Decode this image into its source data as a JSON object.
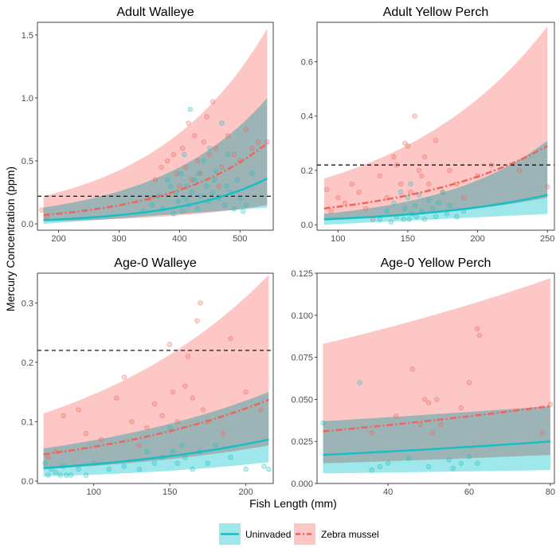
{
  "colors": {
    "uninvaded": "#17bfc4",
    "zebra": "#f0645a",
    "uninvaded_band": "#9ee7ea",
    "zebra_band": "#fcc7c5",
    "overlap_band": "#c7c7c7"
  },
  "axes": {
    "x_title": "Fish Length (mm)",
    "y_title": "Mercury Concentration (ppm)"
  },
  "legend": {
    "uninvaded_label": "Uninvaded",
    "zebra_label": "Zebra mussel"
  },
  "chart_data": [
    {
      "type": "scatter",
      "title": "Adult Walleye",
      "xlim": [
        165,
        555
      ],
      "ylim": [
        -0.05,
        1.6
      ],
      "xticks": [
        200,
        300,
        400,
        500
      ],
      "yticks": [
        0.0,
        0.5,
        1.0,
        1.5
      ],
      "ytick_labels": [
        "0.0",
        "0.5",
        "1.0",
        "1.5"
      ],
      "threshold": 0.22,
      "series": [
        {
          "name": "Uninvaded",
          "x": [
            175,
            545
          ],
          "fit": [
            0.03,
            0.36
          ],
          "lower": [
            0.0,
            0.13
          ],
          "upper": [
            0.13,
            1.0
          ],
          "points_x": [
            340,
            355,
            365,
            372,
            380,
            385,
            390,
            395,
            398,
            402,
            405,
            408,
            410,
            412,
            415,
            418,
            420,
            425,
            430,
            432,
            435,
            440,
            445,
            448,
            450,
            455,
            458,
            460,
            465,
            470,
            475,
            478,
            480,
            485,
            490,
            495,
            500,
            505,
            510,
            520
          ],
          "points_y": [
            0.1,
            0.15,
            0.22,
            0.12,
            0.35,
            0.3,
            0.08,
            0.25,
            0.18,
            0.4,
            0.1,
            0.55,
            0.2,
            0.3,
            0.15,
            0.91,
            0.25,
            0.35,
            0.12,
            0.4,
            0.22,
            0.5,
            0.3,
            0.18,
            0.6,
            0.25,
            0.35,
            0.42,
            0.2,
            0.8,
            0.15,
            0.3,
            0.55,
            0.25,
            0.12,
            0.35,
            0.2,
            0.1,
            0.15,
            0.4
          ]
        },
        {
          "name": "Zebra mussel",
          "x": [
            175,
            545
          ],
          "fit": [
            0.07,
            0.64
          ],
          "lower": [
            0.02,
            0.15
          ],
          "upper": [
            0.22,
            1.55
          ],
          "points_x": [
            172,
            180,
            350,
            360,
            370,
            380,
            390,
            395,
            400,
            405,
            410,
            415,
            420,
            425,
            430,
            435,
            440,
            445,
            450,
            455,
            460,
            465,
            470,
            480,
            490,
            500,
            510,
            520,
            530,
            545
          ],
          "points_y": [
            0.11,
            0.05,
            0.2,
            0.35,
            0.45,
            0.5,
            0.55,
            0.4,
            0.3,
            0.6,
            0.45,
            0.8,
            0.35,
            0.7,
            0.5,
            0.4,
            0.65,
            0.85,
            0.55,
            0.97,
            0.6,
            0.3,
            0.45,
            0.7,
            0.55,
            0.5,
            0.75,
            0.6,
            0.65,
            0.65
          ]
        }
      ]
    },
    {
      "type": "scatter",
      "title": "Adult Yellow Perch",
      "xlim": [
        85,
        255
      ],
      "ylim": [
        -0.02,
        0.745
      ],
      "xticks": [
        100,
        150,
        200,
        250
      ],
      "yticks": [
        0.0,
        0.2,
        0.4,
        0.6
      ],
      "ytick_labels": [
        "0.0",
        "0.2",
        "0.4",
        "0.6"
      ],
      "threshold": 0.22,
      "series": [
        {
          "name": "Uninvaded",
          "x": [
            90,
            250
          ],
          "fit": [
            0.02,
            0.11
          ],
          "lower": [
            0.0,
            0.04
          ],
          "upper": [
            0.04,
            0.31
          ],
          "points_x": [
            130,
            135,
            138,
            140,
            142,
            145,
            147,
            148,
            150,
            151,
            152,
            153,
            155,
            156,
            158,
            160,
            162,
            165,
            168,
            170,
            172,
            175,
            178,
            180,
            185,
            190
          ],
          "points_y": [
            0.02,
            0.05,
            0.01,
            0.08,
            0.03,
            0.12,
            0.02,
            0.06,
            0.1,
            0.02,
            0.15,
            0.04,
            0.07,
            0.03,
            0.11,
            0.05,
            0.02,
            0.09,
            0.06,
            0.03,
            0.08,
            0.12,
            0.04,
            0.07,
            0.03,
            0.05
          ]
        },
        {
          "name": "Zebra mussel",
          "x": [
            90,
            250
          ],
          "fit": [
            0.06,
            0.29
          ],
          "lower": [
            0.02,
            0.1
          ],
          "upper": [
            0.17,
            0.73
          ],
          "points_x": [
            92,
            95,
            100,
            105,
            110,
            115,
            120,
            125,
            130,
            135,
            140,
            142,
            145,
            148,
            150,
            152,
            155,
            158,
            160,
            162,
            165,
            170,
            175,
            180,
            185,
            190,
            200,
            210,
            230,
            250
          ],
          "points_y": [
            0.13,
            0.05,
            0.1,
            0.08,
            0.15,
            0.12,
            0.06,
            0.02,
            0.18,
            0.1,
            0.25,
            0.22,
            0.15,
            0.3,
            0.29,
            0.12,
            0.4,
            0.2,
            0.18,
            0.25,
            0.15,
            0.31,
            0.12,
            0.2,
            0.15,
            0.1,
            0.18,
            0.22,
            0.2,
            0.14
          ]
        }
      ]
    },
    {
      "type": "scatter",
      "title": "Age-0 Walleye",
      "xlim": [
        63,
        218
      ],
      "ylim": [
        -0.004,
        0.35
      ],
      "xticks": [
        100,
        150,
        200
      ],
      "yticks": [
        0.0,
        0.1,
        0.2,
        0.3
      ],
      "ytick_labels": [
        "0.0",
        "0.1",
        "0.2",
        "0.3"
      ],
      "threshold": 0.22,
      "series": [
        {
          "name": "Uninvaded",
          "x": [
            67,
            215
          ],
          "fit": [
            0.022,
            0.07
          ],
          "lower": [
            0.008,
            0.032
          ],
          "upper": [
            0.055,
            0.15
          ],
          "points_x": [
            68,
            70,
            72,
            75,
            78,
            80,
            82,
            85,
            90,
            95,
            100,
            110,
            120,
            130,
            135,
            140,
            145,
            150,
            152,
            155,
            158,
            160,
            165,
            170,
            175,
            180,
            190,
            200,
            212,
            215
          ],
          "points_y": [
            0.03,
            0.01,
            0.02,
            0.015,
            0.01,
            0.025,
            0.01,
            0.01,
            0.02,
            0.01,
            0.03,
            0.02,
            0.025,
            0.02,
            0.05,
            0.03,
            0.04,
            0.09,
            0.05,
            0.03,
            0.06,
            0.04,
            0.02,
            0.05,
            0.03,
            0.06,
            0.04,
            0.02,
            0.025,
            0.02
          ]
        },
        {
          "name": "Zebra mussel",
          "x": [
            67,
            215
          ],
          "fit": [
            0.045,
            0.137
          ],
          "lower": [
            0.02,
            0.06
          ],
          "upper": [
            0.114,
            0.347
          ],
          "points_x": [
            70,
            75,
            80,
            90,
            95,
            105,
            115,
            120,
            125,
            130,
            135,
            140,
            145,
            150,
            152,
            155,
            160,
            162,
            165,
            168,
            170,
            172,
            175,
            185,
            190,
            200,
            210
          ],
          "points_y": [
            0.04,
            0.05,
            0.11,
            0.12,
            0.08,
            0.07,
            0.14,
            0.175,
            0.1,
            0.06,
            0.09,
            0.13,
            0.11,
            0.23,
            0.15,
            0.1,
            0.16,
            0.21,
            0.14,
            0.27,
            0.3,
            0.12,
            0.1,
            0.08,
            0.24,
            0.15,
            0.12
          ]
        }
      ]
    },
    {
      "type": "scatter",
      "title": "Age-0 Yellow Perch",
      "xlim": [
        22.5,
        81
      ],
      "ylim": [
        0.0,
        0.125
      ],
      "xticks": [
        40,
        60,
        80
      ],
      "yticks": [
        0.0,
        0.025,
        0.05,
        0.075,
        0.1,
        0.125
      ],
      "ytick_labels": [
        "0.000",
        "0.025",
        "0.050",
        "0.075",
        "0.100",
        "0.125"
      ],
      "threshold": null,
      "series": [
        {
          "name": "Uninvaded",
          "x": [
            24,
            80
          ],
          "fit": [
            0.017,
            0.025
          ],
          "lower": [
            0.006,
            0.008
          ],
          "upper": [
            0.037,
            0.046
          ],
          "points_x": [
            24,
            33,
            36,
            38,
            40,
            45,
            50,
            55,
            56,
            58,
            60,
            62
          ],
          "points_y": [
            0.036,
            0.06,
            0.008,
            0.01,
            0.012,
            0.015,
            0.01,
            0.014,
            0.009,
            0.012,
            0.016,
            0.012
          ]
        },
        {
          "name": "Zebra mussel",
          "x": [
            24,
            80
          ],
          "fit": [
            0.031,
            0.046
          ],
          "lower": [
            0.012,
            0.017
          ],
          "upper": [
            0.083,
            0.122
          ],
          "points_x": [
            36,
            42,
            46,
            48,
            49,
            50,
            51,
            52,
            53,
            58,
            60,
            62,
            62.5,
            78,
            80
          ],
          "points_y": [
            0.03,
            0.04,
            0.068,
            0.035,
            0.05,
            0.048,
            0.03,
            0.05,
            0.035,
            0.045,
            0.06,
            0.092,
            0.088,
            0.03,
            0.047
          ]
        }
      ]
    }
  ]
}
